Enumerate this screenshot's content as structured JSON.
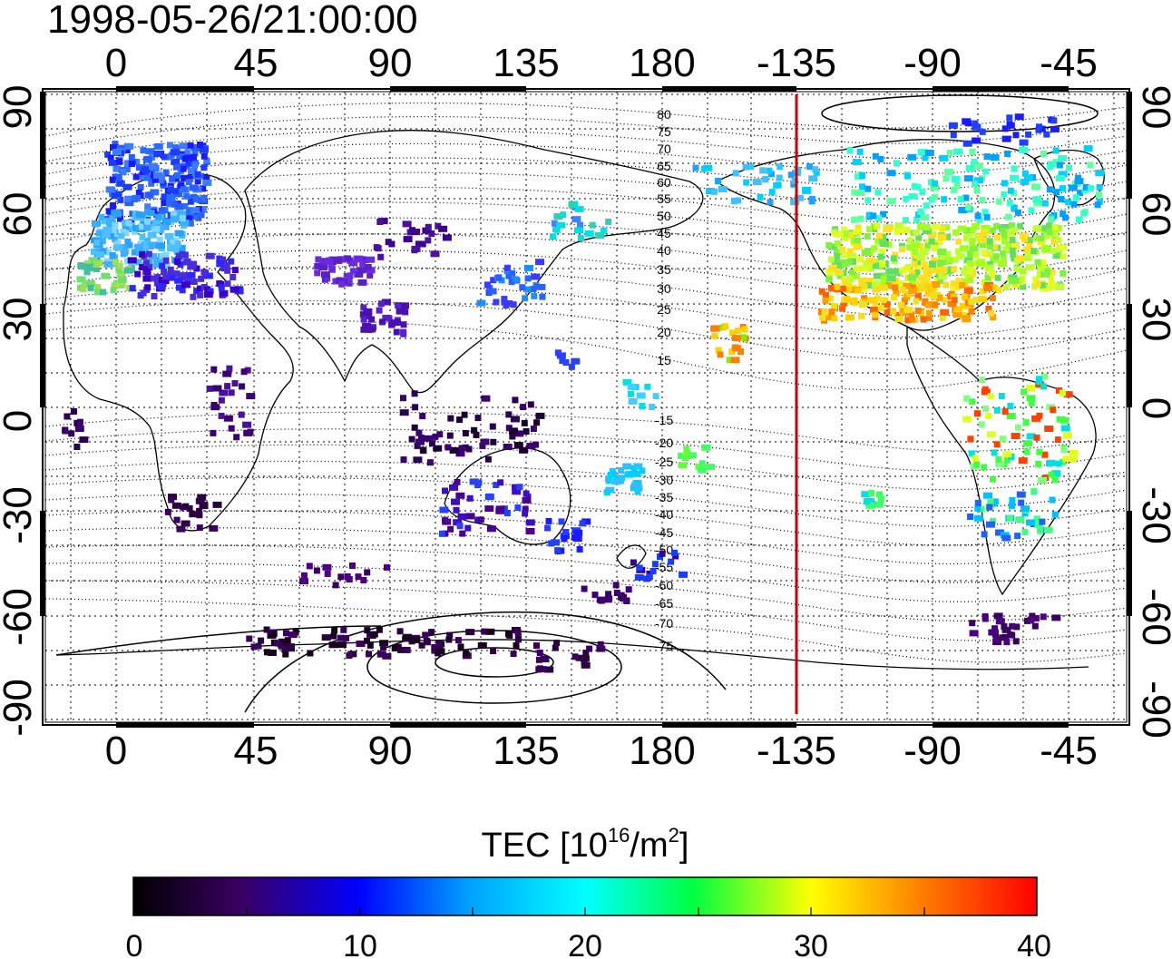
{
  "title": "1998-05-26/21:00:00",
  "map": {
    "lon_ticks_top": [
      "0",
      "45",
      "90",
      "135",
      "180",
      "-135",
      "-90",
      "-45"
    ],
    "lon_ticks_bottom": [
      "0",
      "45",
      "90",
      "135",
      "180",
      "-135",
      "-90",
      "-45"
    ],
    "lat_ticks_left": [
      "90",
      "60",
      "30",
      "0",
      "-30",
      "-60",
      "-90"
    ],
    "lat_ticks_right": [
      "90",
      "60",
      "30",
      "0",
      "-30",
      "-60",
      "-90"
    ],
    "contour_labels": [
      "80",
      "75",
      "70",
      "65",
      "60",
      "55",
      "50",
      "45",
      "40",
      "35",
      "30",
      "25",
      "20",
      "15",
      "-15",
      "-20",
      "-25",
      "-30",
      "-35",
      "-40",
      "-45",
      "-50",
      "-55",
      "-60",
      "-65",
      "-70",
      "-75"
    ],
    "terminator_color": "#cc0000",
    "terminator_lon": -135
  },
  "colorbar": {
    "title_main": "TEC  [10",
    "title_sup1": "16",
    "title_mid": "/m",
    "title_sup2": "2",
    "title_end": "]",
    "tick_labels": [
      "0",
      "10",
      "20",
      "30",
      "40"
    ],
    "range": [
      0,
      40
    ],
    "colormap": [
      "#000000",
      "#4b0082",
      "#0000ff",
      "#00ffff",
      "#00ff00",
      "#ffff00",
      "#ff8000",
      "#ff0000"
    ]
  }
}
